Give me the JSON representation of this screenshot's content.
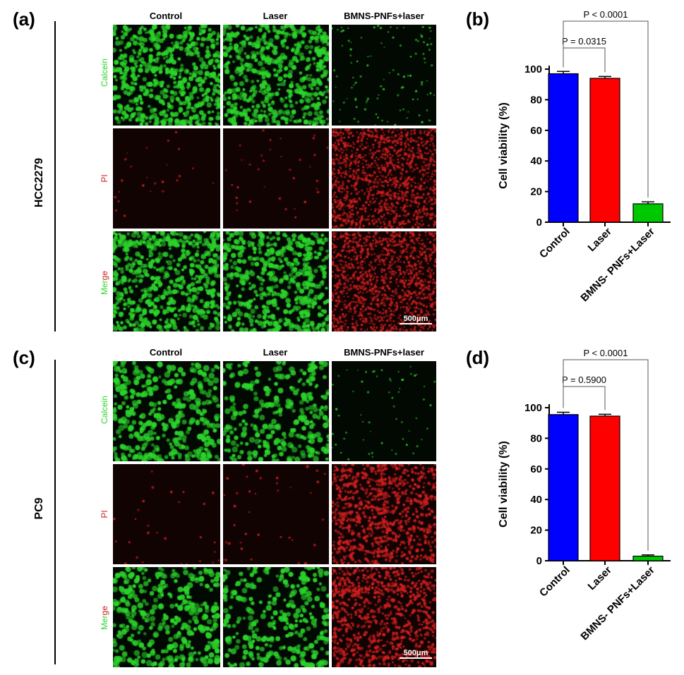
{
  "panels": {
    "a": "(a)",
    "b": "(b)",
    "c": "(c)",
    "d": "(d)"
  },
  "cell_lines": {
    "top": "HCC2279",
    "bottom": "PC9"
  },
  "columns": [
    "Control",
    "Laser",
    "BMNS-PNFs+laser"
  ],
  "stains": {
    "calcein": "Calcein",
    "pi": "PI",
    "merge_part1": "Mer",
    "merge_part2": "ge"
  },
  "scalebar": "500μm",
  "colors": {
    "control": "#0000ff",
    "laser": "#ff0000",
    "bmns": "#00c800",
    "calcein": "#2bd42b",
    "pi": "#d01f1f"
  },
  "chart_data": [
    {
      "type": "bar",
      "panel": "(b)",
      "categories": [
        "Control",
        "Laser",
        "BMNS- PNFs+Laser"
      ],
      "values": [
        97,
        94,
        12
      ],
      "errors": [
        1.5,
        1.2,
        1.3
      ],
      "ylabel": "Cell viability (%)",
      "ylim": [
        0,
        100
      ],
      "yticks": [
        0,
        20,
        40,
        60,
        80,
        100
      ],
      "comparisons": [
        {
          "label": "P = 0.0315",
          "from": 0,
          "to": 1
        },
        {
          "label": "P < 0.0001",
          "from": 0,
          "to": 2
        }
      ]
    },
    {
      "type": "bar",
      "panel": "(d)",
      "categories": [
        "Control",
        "Laser",
        "BMNS- PNFs+Laser"
      ],
      "values": [
        95.5,
        94.5,
        3
      ],
      "errors": [
        1.5,
        1.2,
        0.8
      ],
      "ylabel": "Cell viability (%)",
      "ylim": [
        0,
        100
      ],
      "yticks": [
        0,
        20,
        40,
        60,
        80,
        100
      ],
      "comparisons": [
        {
          "label": "P = 0.5900",
          "from": 0,
          "to": 1
        },
        {
          "label": "P < 0.0001",
          "from": 0,
          "to": 2
        }
      ]
    }
  ]
}
